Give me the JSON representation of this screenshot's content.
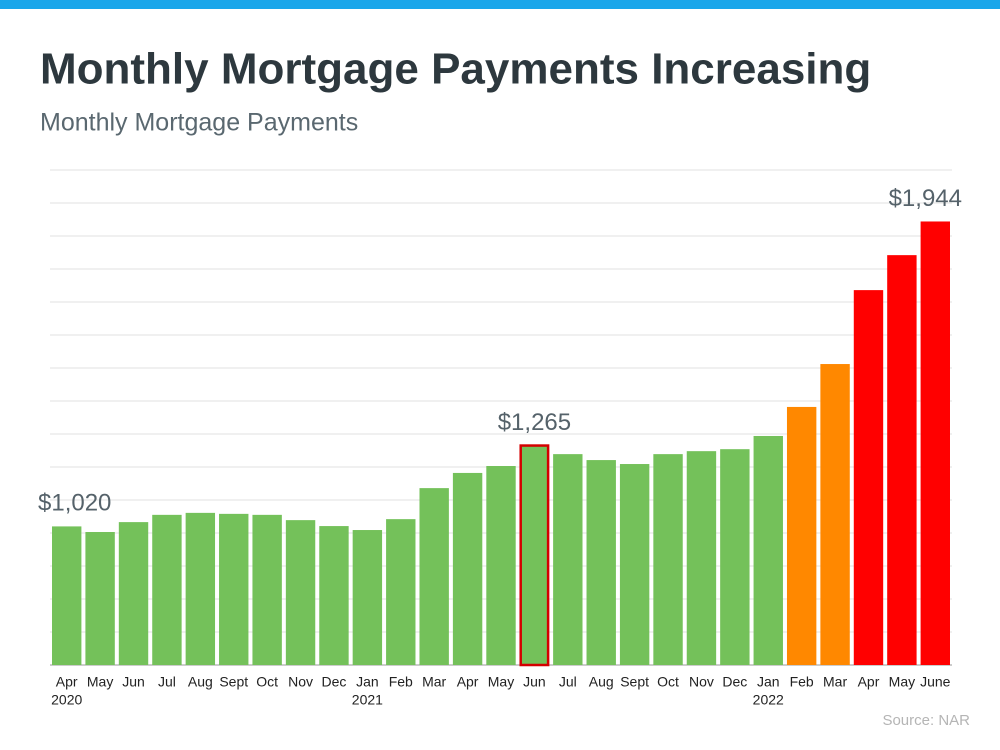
{
  "chart_data": {
    "type": "bar",
    "title": "Monthly Mortgage Payments Increasing",
    "subtitle": "Monthly Mortgage Payments",
    "source": "Source: NAR",
    "categories": [
      "Apr",
      "May",
      "Jun",
      "Jul",
      "Aug",
      "Sept",
      "Oct",
      "Nov",
      "Dec",
      "Jan",
      "Feb",
      "Mar",
      "Apr",
      "May",
      "Jun",
      "Jul",
      "Aug",
      "Sept",
      "Oct",
      "Nov",
      "Dec",
      "Jan",
      "Feb",
      "Mar",
      "Apr",
      "May",
      "June"
    ],
    "years": [
      "2020",
      null,
      null,
      null,
      null,
      null,
      null,
      null,
      null,
      "2021",
      null,
      null,
      null,
      null,
      null,
      null,
      null,
      null,
      null,
      null,
      null,
      "2022",
      null,
      null,
      null,
      null,
      null
    ],
    "values": [
      1020,
      1003,
      1033,
      1055,
      1061,
      1058,
      1055,
      1039,
      1021,
      1009,
      1042,
      1136,
      1182,
      1203,
      1265,
      1239,
      1221,
      1209,
      1239,
      1248,
      1254,
      1294,
      1382,
      1512,
      1736,
      1842,
      1944
    ],
    "value_labels": [
      "$1,020",
      null,
      null,
      null,
      null,
      null,
      null,
      null,
      null,
      null,
      null,
      null,
      null,
      null,
      "$1,265",
      null,
      null,
      null,
      null,
      null,
      null,
      null,
      null,
      null,
      null,
      null,
      "$1,944"
    ],
    "colors": [
      "#74c15a",
      "#74c15a",
      "#74c15a",
      "#74c15a",
      "#74c15a",
      "#74c15a",
      "#74c15a",
      "#74c15a",
      "#74c15a",
      "#74c15a",
      "#74c15a",
      "#74c15a",
      "#74c15a",
      "#74c15a",
      "#74c15a",
      "#74c15a",
      "#74c15a",
      "#74c15a",
      "#74c15a",
      "#74c15a",
      "#74c15a",
      "#74c15a",
      "#ff8800",
      "#ff8800",
      "#ff0000",
      "#ff0000",
      "#ff0000"
    ],
    "outline": {
      "index": 14,
      "color": "#d40000"
    },
    "ylim": [
      600,
      2100
    ],
    "yticks": [
      600,
      700,
      800,
      900,
      1000,
      1100,
      1200,
      1300,
      1400,
      1500,
      1600,
      1700,
      1800,
      1900,
      2000,
      2100
    ],
    "grid": true
  }
}
